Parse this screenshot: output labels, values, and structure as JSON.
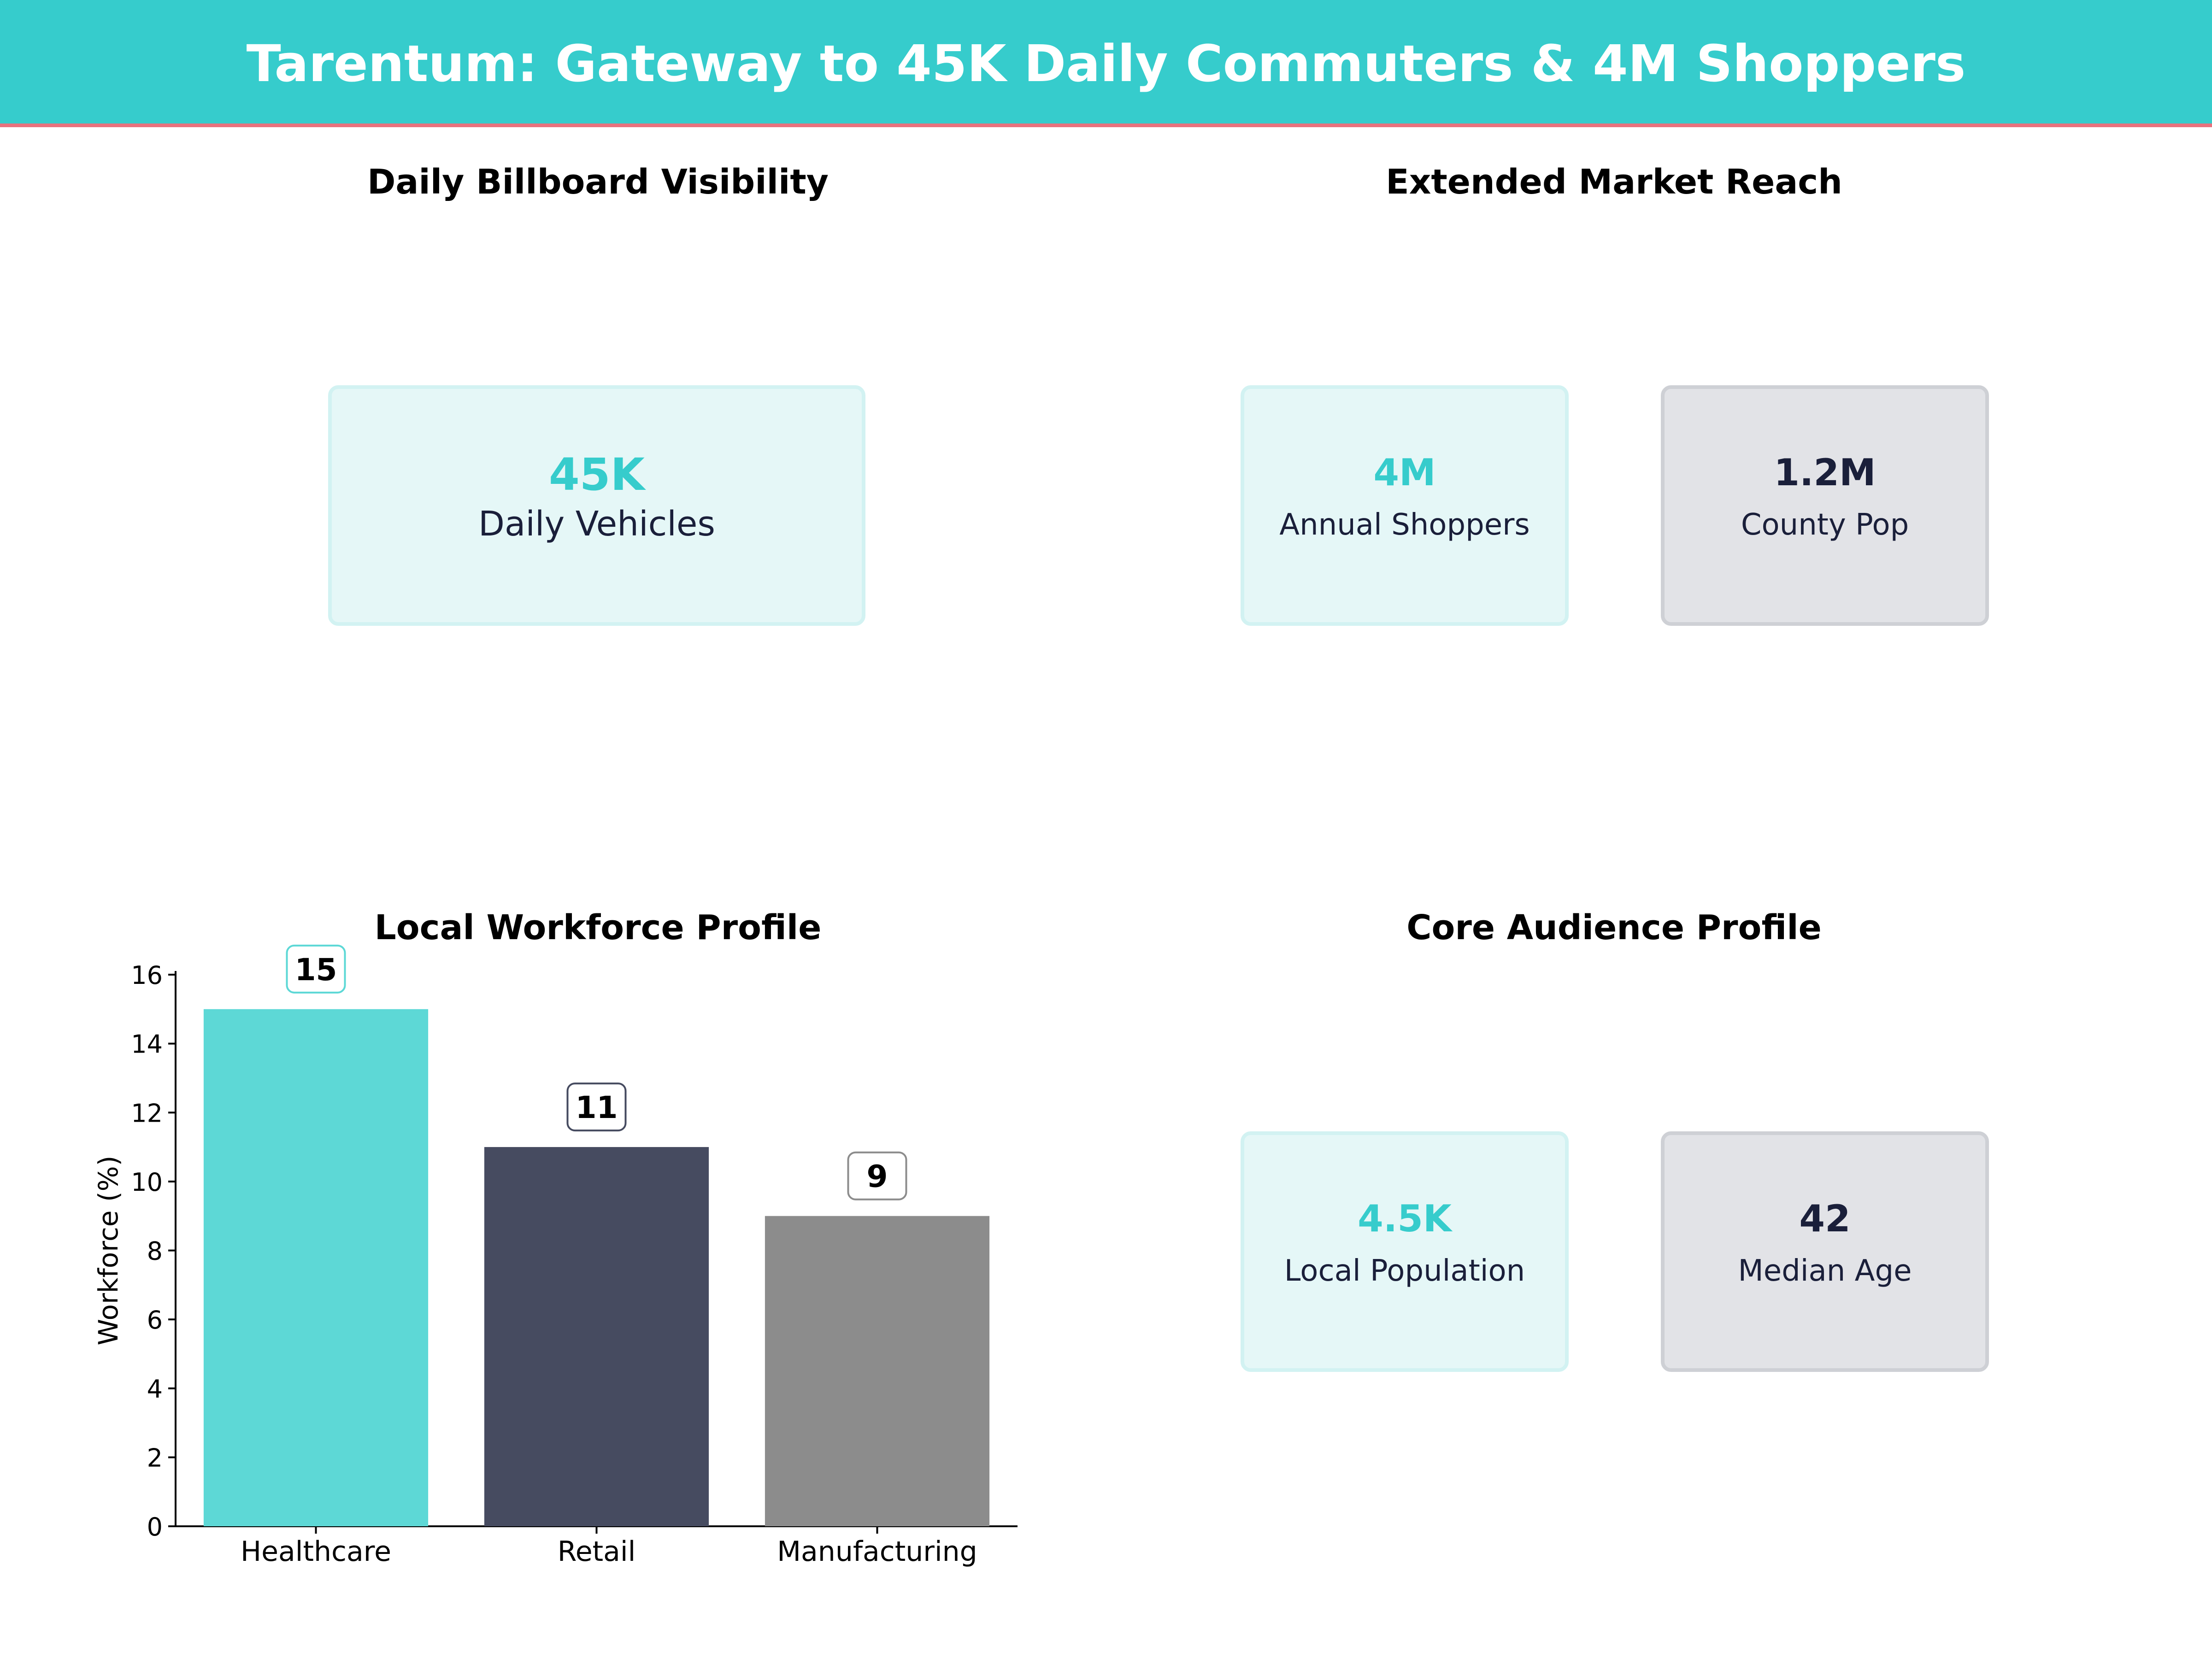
{
  "header": {
    "title": "Tarentum: Gateway to 45K Daily Commuters & 4M Shoppers"
  },
  "colors": {
    "accent": "#36CCCC",
    "accent_line": "#E8727E",
    "navy": "#1A1F3A",
    "teal_value": "#36CCCC"
  },
  "panels": {
    "visibility": {
      "title": "Daily Billboard Visibility",
      "cards": [
        {
          "value": "45K",
          "label": "Daily Vehicles"
        }
      ]
    },
    "market": {
      "title": "Extended Market Reach",
      "cards": [
        {
          "value": "4M",
          "label": "Annual Shoppers"
        },
        {
          "value": "1.2M",
          "label": "County Pop"
        }
      ]
    },
    "workforce": {
      "title": "Local Workforce Profile"
    },
    "audience": {
      "title": "Core Audience Profile",
      "cards": [
        {
          "value": "4.5K",
          "label": "Local Population"
        },
        {
          "value": "42",
          "label": "Median Age"
        }
      ]
    }
  },
  "chart_data": {
    "type": "bar",
    "title": "Local Workforce Profile",
    "categories": [
      "Healthcare",
      "Retail",
      "Manufacturing"
    ],
    "values": [
      15,
      11,
      9
    ],
    "data_labels": [
      "15",
      "11",
      "9"
    ],
    "bar_colors": [
      "#5DD8D6",
      "#464B60",
      "#8C8C8C"
    ],
    "label_border_colors": [
      "#5DD8D6",
      "#464B60",
      "#8C8C8C"
    ],
    "xlabel": "",
    "ylabel": "Workforce (%)",
    "ylim": [
      0,
      16
    ],
    "yticks": [
      0,
      2,
      4,
      6,
      8,
      10,
      12,
      14,
      16
    ],
    "grid": false
  }
}
